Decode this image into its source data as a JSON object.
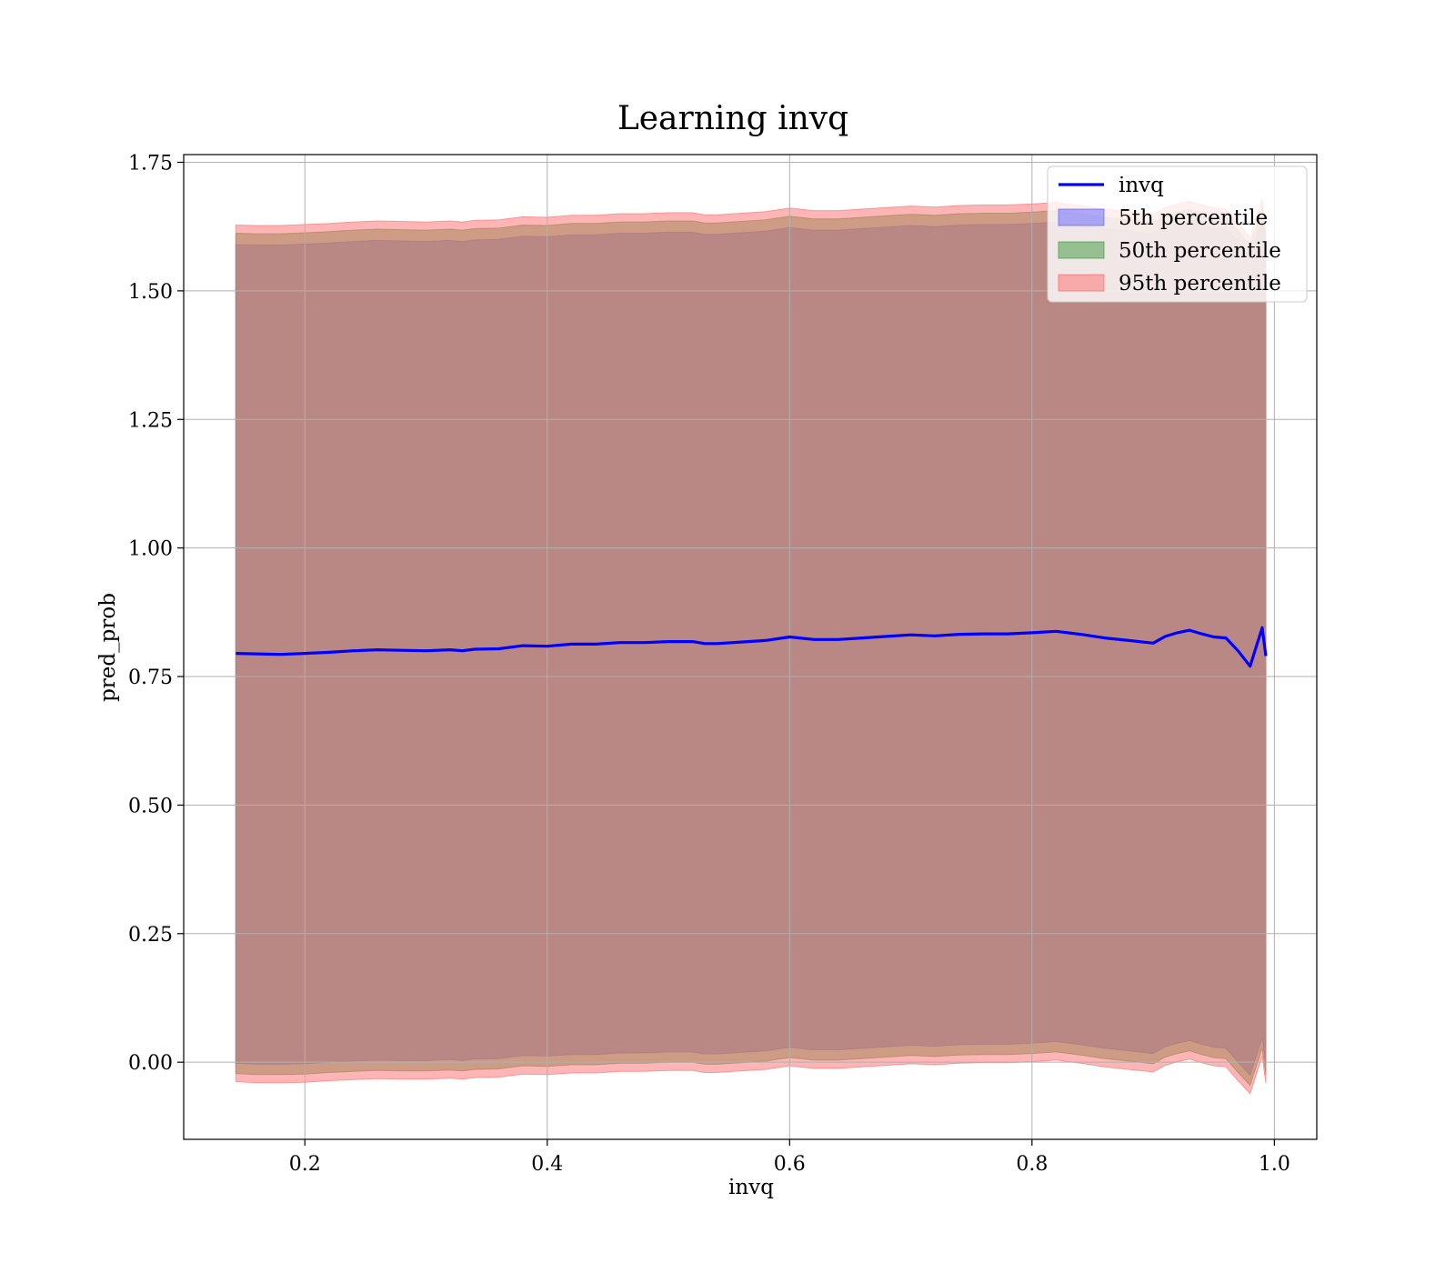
{
  "chart_data": {
    "type": "line",
    "title": "Learning invq",
    "xlabel": "invq",
    "ylabel": "pred_prob",
    "xlim": [
      0.1,
      1.035
    ],
    "ylim": [
      -0.15,
      1.765
    ],
    "xticks": [
      0.2,
      0.4,
      0.6,
      0.8,
      1.0
    ],
    "xtick_labels": [
      "0.2",
      "0.4",
      "0.6",
      "0.8",
      "1.0"
    ],
    "yticks": [
      0.0,
      0.25,
      0.5,
      0.75,
      1.0,
      1.25,
      1.5,
      1.75
    ],
    "ytick_labels": [
      "0.00",
      "0.25",
      "0.50",
      "0.75",
      "1.00",
      "1.25",
      "1.50",
      "1.75"
    ],
    "grid": true,
    "legend_position": "top-right",
    "x": [
      0.143,
      0.16,
      0.18,
      0.2,
      0.22,
      0.24,
      0.26,
      0.28,
      0.3,
      0.32,
      0.33,
      0.34,
      0.36,
      0.38,
      0.4,
      0.42,
      0.44,
      0.46,
      0.48,
      0.5,
      0.52,
      0.53,
      0.54,
      0.56,
      0.58,
      0.6,
      0.62,
      0.64,
      0.66,
      0.68,
      0.7,
      0.72,
      0.74,
      0.76,
      0.78,
      0.8,
      0.82,
      0.84,
      0.86,
      0.88,
      0.9,
      0.91,
      0.92,
      0.93,
      0.94,
      0.95,
      0.96,
      0.97,
      0.98,
      0.99,
      0.993
    ],
    "series": [
      {
        "name": "invq",
        "role": "line",
        "color": "#0000ff",
        "values": [
          0.795,
          0.794,
          0.793,
          0.795,
          0.797,
          0.8,
          0.802,
          0.801,
          0.8,
          0.802,
          0.8,
          0.803,
          0.804,
          0.81,
          0.809,
          0.813,
          0.813,
          0.816,
          0.816,
          0.818,
          0.818,
          0.814,
          0.814,
          0.817,
          0.82,
          0.827,
          0.822,
          0.822,
          0.825,
          0.828,
          0.831,
          0.829,
          0.832,
          0.833,
          0.833,
          0.835,
          0.838,
          0.832,
          0.825,
          0.82,
          0.815,
          0.828,
          0.835,
          0.84,
          0.833,
          0.827,
          0.825,
          0.8,
          0.77,
          0.845,
          0.79
        ]
      },
      {
        "name": "5th percentile",
        "role": "band",
        "color": "#6060ff",
        "lower": [
          -0.002,
          -0.004,
          -0.004,
          -0.003,
          0.0,
          0.002,
          0.004,
          0.003,
          0.003,
          0.005,
          0.003,
          0.006,
          0.007,
          0.013,
          0.012,
          0.015,
          0.015,
          0.018,
          0.018,
          0.02,
          0.02,
          0.016,
          0.016,
          0.019,
          0.022,
          0.029,
          0.024,
          0.024,
          0.027,
          0.03,
          0.033,
          0.031,
          0.034,
          0.035,
          0.035,
          0.037,
          0.04,
          0.034,
          0.027,
          0.022,
          0.017,
          0.03,
          0.037,
          0.042,
          0.035,
          0.029,
          0.027,
          0.0,
          -0.025,
          0.048,
          -0.005
        ],
        "upper": [
          1.59,
          1.589,
          1.589,
          1.591,
          1.593,
          1.596,
          1.598,
          1.597,
          1.596,
          1.598,
          1.596,
          1.599,
          1.6,
          1.606,
          1.605,
          1.609,
          1.609,
          1.612,
          1.612,
          1.614,
          1.614,
          1.61,
          1.61,
          1.613,
          1.616,
          1.623,
          1.618,
          1.618,
          1.621,
          1.624,
          1.627,
          1.625,
          1.628,
          1.629,
          1.629,
          1.631,
          1.634,
          1.628,
          1.621,
          1.616,
          1.611,
          1.624,
          1.631,
          1.636,
          1.629,
          1.623,
          1.621,
          1.596,
          1.566,
          1.641,
          1.586
        ]
      },
      {
        "name": "50th percentile",
        "role": "band",
        "color": "#3c9a3c",
        "lower": [
          -0.022,
          -0.024,
          -0.024,
          -0.023,
          -0.02,
          -0.018,
          -0.016,
          -0.017,
          -0.017,
          -0.015,
          -0.017,
          -0.014,
          -0.013,
          -0.007,
          -0.008,
          -0.005,
          -0.005,
          -0.002,
          -0.002,
          0.0,
          0.0,
          -0.004,
          -0.004,
          -0.001,
          0.002,
          0.009,
          0.004,
          0.004,
          0.007,
          0.01,
          0.013,
          0.011,
          0.014,
          0.015,
          0.015,
          0.017,
          0.02,
          0.014,
          0.007,
          0.002,
          -0.003,
          0.01,
          0.017,
          0.022,
          0.015,
          0.009,
          0.007,
          -0.02,
          -0.045,
          0.028,
          -0.025
        ],
        "upper": [
          1.612,
          1.611,
          1.611,
          1.613,
          1.615,
          1.618,
          1.62,
          1.619,
          1.618,
          1.62,
          1.618,
          1.621,
          1.622,
          1.628,
          1.627,
          1.631,
          1.631,
          1.634,
          1.634,
          1.636,
          1.636,
          1.632,
          1.632,
          1.635,
          1.638,
          1.645,
          1.64,
          1.64,
          1.643,
          1.646,
          1.649,
          1.647,
          1.65,
          1.651,
          1.651,
          1.653,
          1.656,
          1.65,
          1.643,
          1.638,
          1.633,
          1.646,
          1.653,
          1.658,
          1.651,
          1.645,
          1.643,
          1.618,
          1.588,
          1.663,
          1.608
        ]
      },
      {
        "name": "95th percentile",
        "role": "band",
        "color": "#ff6b6b",
        "lower": [
          -0.038,
          -0.04,
          -0.04,
          -0.039,
          -0.036,
          -0.034,
          -0.032,
          -0.033,
          -0.033,
          -0.031,
          -0.033,
          -0.03,
          -0.029,
          -0.023,
          -0.024,
          -0.021,
          -0.021,
          -0.018,
          -0.018,
          -0.016,
          -0.016,
          -0.02,
          -0.02,
          -0.017,
          -0.014,
          -0.007,
          -0.012,
          -0.012,
          -0.009,
          -0.006,
          -0.003,
          -0.005,
          -0.002,
          -0.001,
          -0.001,
          0.001,
          0.004,
          -0.002,
          -0.009,
          -0.014,
          -0.019,
          -0.006,
          0.001,
          0.006,
          -0.001,
          -0.007,
          -0.009,
          -0.036,
          -0.061,
          0.012,
          -0.041
        ],
        "upper": [
          1.628,
          1.627,
          1.627,
          1.629,
          1.631,
          1.634,
          1.636,
          1.635,
          1.634,
          1.636,
          1.634,
          1.637,
          1.638,
          1.644,
          1.643,
          1.647,
          1.647,
          1.65,
          1.65,
          1.652,
          1.652,
          1.648,
          1.648,
          1.651,
          1.654,
          1.661,
          1.656,
          1.656,
          1.659,
          1.662,
          1.665,
          1.663,
          1.666,
          1.667,
          1.667,
          1.669,
          1.672,
          1.666,
          1.659,
          1.654,
          1.649,
          1.662,
          1.669,
          1.674,
          1.667,
          1.661,
          1.659,
          1.634,
          1.604,
          1.679,
          1.624
        ]
      }
    ]
  }
}
